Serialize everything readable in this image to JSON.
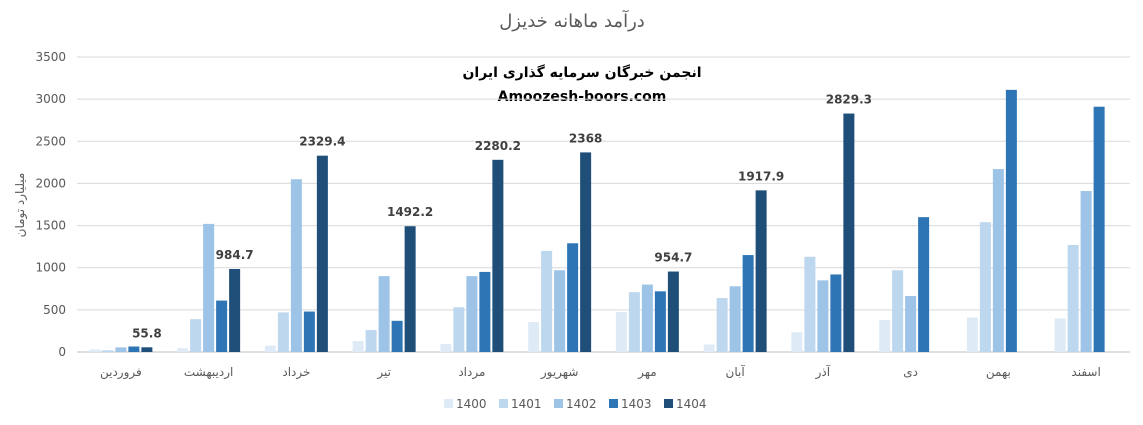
{
  "chart_data": {
    "type": "bar",
    "title": "درآمد ماهانه خدیزل",
    "watermark_line1": "انجمن خبرگان سرمایه گذاری ایران",
    "watermark_line2": "Amoozesh-boors.com",
    "ylabel": "میلیارد تومان",
    "ylim": [
      0,
      3500
    ],
    "yticks": [
      0,
      500,
      1000,
      1500,
      2000,
      2500,
      3000,
      3500
    ],
    "grid": true,
    "legend_position": "bottom",
    "categories": [
      "فروردین",
      "اردیبهشت",
      "خرداد",
      "تیر",
      "مرداد",
      "شهریور",
      "مهر",
      "آبان",
      "آذر",
      "دی",
      "بهمن",
      "اسفند"
    ],
    "series": [
      {
        "name": "1400",
        "color": "#deebf7",
        "values": [
          30,
          45,
          75,
          130,
          95,
          355,
          475,
          90,
          235,
          380,
          410,
          400
        ]
      },
      {
        "name": "1401",
        "color": "#bdd7ee",
        "values": [
          20,
          390,
          470,
          260,
          530,
          1200,
          710,
          640,
          1130,
          970,
          1540,
          1270
        ]
      },
      {
        "name": "1402",
        "color": "#9dc3e6",
        "values": [
          55,
          1520,
          2050,
          900,
          900,
          970,
          800,
          780,
          850,
          665,
          2170,
          1910
        ]
      },
      {
        "name": "1403",
        "color": "#2e75b6",
        "values": [
          65,
          610,
          480,
          370,
          950,
          1290,
          720,
          1150,
          920,
          1600,
          3110,
          2910
        ]
      },
      {
        "name": "1404",
        "color": "#1f4e79",
        "values": [
          55.8,
          984.7,
          2329.4,
          1492.2,
          2280.2,
          2368,
          954.7,
          1917.9,
          2829.3,
          null,
          null,
          null
        ]
      }
    ],
    "data_labels": [
      "55.8",
      "984.7",
      "2329.4",
      "1492.2",
      "2280.2",
      "2368",
      "954.7",
      "1917.9",
      "2829.3"
    ]
  }
}
